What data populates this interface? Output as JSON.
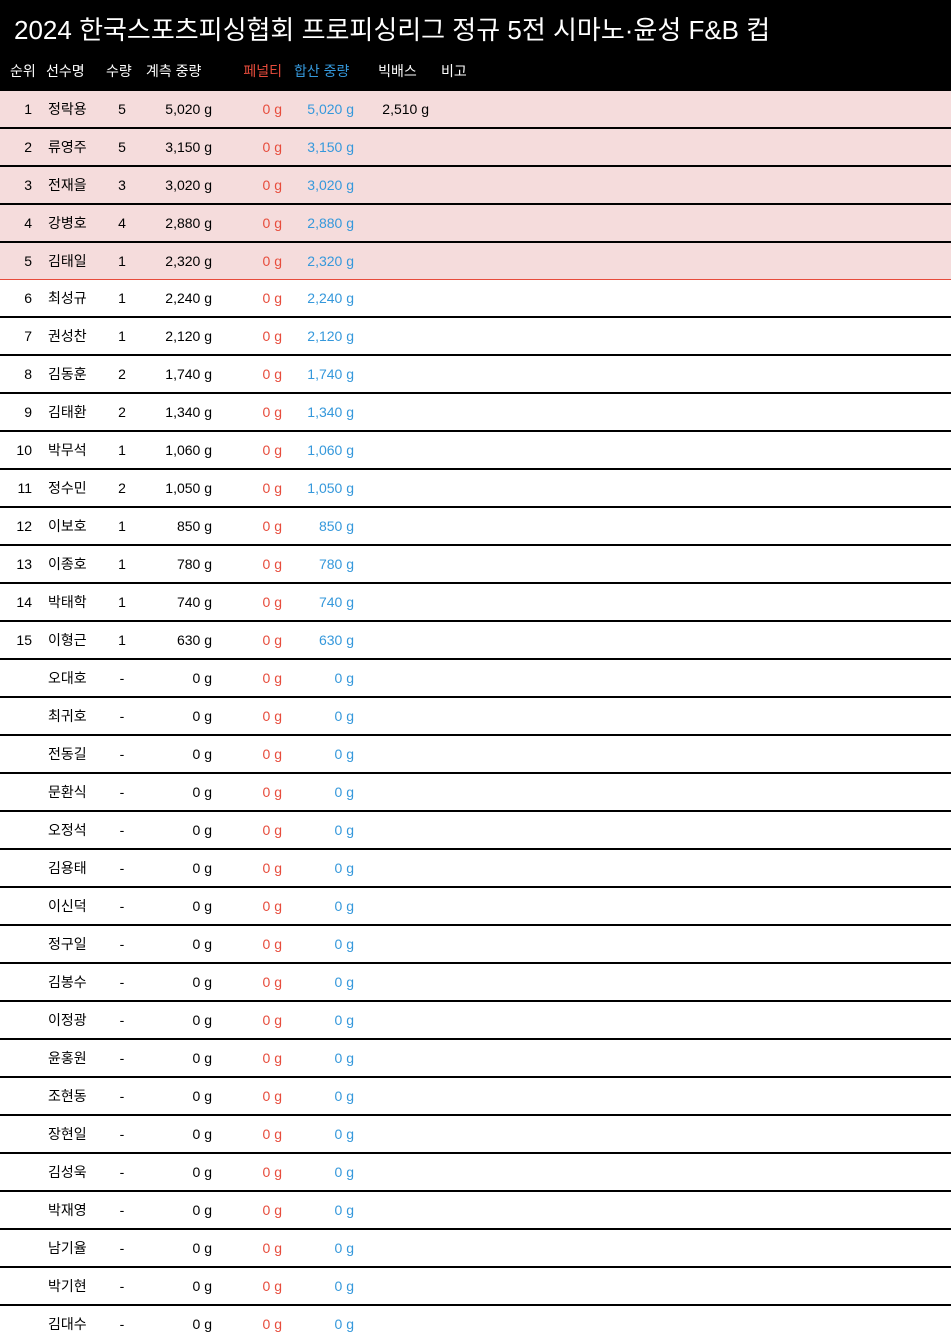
{
  "title": "2024 한국스포츠피싱협회 프로피싱리그 정규 5전 시마노·윤성 F&B 컵",
  "headers": {
    "rank": "순위",
    "name": "선수명",
    "qty": "수량",
    "weight": "계측 중량",
    "penalty": "페널티",
    "sum": "합산 중량",
    "bigbass": "빅배스",
    "note": "비고"
  },
  "colors": {
    "header_bg": "#000000",
    "header_fg": "#ffffff",
    "penalty": "#e74c3c",
    "sum": "#3598db",
    "top5_bg": "#f5dcdc",
    "row_border": "#000000",
    "top5_divider": "#e74c3c"
  },
  "top_highlight_count": 5,
  "rows": [
    {
      "rank": "1",
      "name": "정락용",
      "qty": "5",
      "weight": "5,020 g",
      "penalty": "0 g",
      "sum": "5,020 g",
      "bigbass": "2,510 g",
      "note": ""
    },
    {
      "rank": "2",
      "name": "류영주",
      "qty": "5",
      "weight": "3,150 g",
      "penalty": "0 g",
      "sum": "3,150 g",
      "bigbass": "",
      "note": ""
    },
    {
      "rank": "3",
      "name": "전재을",
      "qty": "3",
      "weight": "3,020 g",
      "penalty": "0 g",
      "sum": "3,020 g",
      "bigbass": "",
      "note": ""
    },
    {
      "rank": "4",
      "name": "강병호",
      "qty": "4",
      "weight": "2,880 g",
      "penalty": "0 g",
      "sum": "2,880 g",
      "bigbass": "",
      "note": ""
    },
    {
      "rank": "5",
      "name": "김태일",
      "qty": "1",
      "weight": "2,320 g",
      "penalty": "0 g",
      "sum": "2,320 g",
      "bigbass": "",
      "note": ""
    },
    {
      "rank": "6",
      "name": "최성규",
      "qty": "1",
      "weight": "2,240 g",
      "penalty": "0 g",
      "sum": "2,240 g",
      "bigbass": "",
      "note": ""
    },
    {
      "rank": "7",
      "name": "권성찬",
      "qty": "1",
      "weight": "2,120 g",
      "penalty": "0 g",
      "sum": "2,120 g",
      "bigbass": "",
      "note": ""
    },
    {
      "rank": "8",
      "name": "김동훈",
      "qty": "2",
      "weight": "1,740 g",
      "penalty": "0 g",
      "sum": "1,740 g",
      "bigbass": "",
      "note": ""
    },
    {
      "rank": "9",
      "name": "김태환",
      "qty": "2",
      "weight": "1,340 g",
      "penalty": "0 g",
      "sum": "1,340 g",
      "bigbass": "",
      "note": ""
    },
    {
      "rank": "10",
      "name": "박무석",
      "qty": "1",
      "weight": "1,060 g",
      "penalty": "0 g",
      "sum": "1,060 g",
      "bigbass": "",
      "note": ""
    },
    {
      "rank": "11",
      "name": "정수민",
      "qty": "2",
      "weight": "1,050 g",
      "penalty": "0 g",
      "sum": "1,050 g",
      "bigbass": "",
      "note": ""
    },
    {
      "rank": "12",
      "name": "이보호",
      "qty": "1",
      "weight": "850 g",
      "penalty": "0 g",
      "sum": "850 g",
      "bigbass": "",
      "note": ""
    },
    {
      "rank": "13",
      "name": "이종호",
      "qty": "1",
      "weight": "780 g",
      "penalty": "0 g",
      "sum": "780 g",
      "bigbass": "",
      "note": ""
    },
    {
      "rank": "14",
      "name": "박태학",
      "qty": "1",
      "weight": "740 g",
      "penalty": "0 g",
      "sum": "740 g",
      "bigbass": "",
      "note": ""
    },
    {
      "rank": "15",
      "name": "이형근",
      "qty": "1",
      "weight": "630 g",
      "penalty": "0 g",
      "sum": "630 g",
      "bigbass": "",
      "note": ""
    },
    {
      "rank": "",
      "name": "오대호",
      "qty": "-",
      "weight": "0 g",
      "penalty": "0 g",
      "sum": "0 g",
      "bigbass": "",
      "note": ""
    },
    {
      "rank": "",
      "name": "최귀호",
      "qty": "-",
      "weight": "0 g",
      "penalty": "0 g",
      "sum": "0 g",
      "bigbass": "",
      "note": ""
    },
    {
      "rank": "",
      "name": "전동길",
      "qty": "-",
      "weight": "0 g",
      "penalty": "0 g",
      "sum": "0 g",
      "bigbass": "",
      "note": ""
    },
    {
      "rank": "",
      "name": "문환식",
      "qty": "-",
      "weight": "0 g",
      "penalty": "0 g",
      "sum": "0 g",
      "bigbass": "",
      "note": ""
    },
    {
      "rank": "",
      "name": "오정석",
      "qty": "-",
      "weight": "0 g",
      "penalty": "0 g",
      "sum": "0 g",
      "bigbass": "",
      "note": ""
    },
    {
      "rank": "",
      "name": "김용태",
      "qty": "-",
      "weight": "0 g",
      "penalty": "0 g",
      "sum": "0 g",
      "bigbass": "",
      "note": ""
    },
    {
      "rank": "",
      "name": "이신덕",
      "qty": "-",
      "weight": "0 g",
      "penalty": "0 g",
      "sum": "0 g",
      "bigbass": "",
      "note": ""
    },
    {
      "rank": "",
      "name": "정구일",
      "qty": "-",
      "weight": "0 g",
      "penalty": "0 g",
      "sum": "0 g",
      "bigbass": "",
      "note": ""
    },
    {
      "rank": "",
      "name": "김봉수",
      "qty": "-",
      "weight": "0 g",
      "penalty": "0 g",
      "sum": "0 g",
      "bigbass": "",
      "note": ""
    },
    {
      "rank": "",
      "name": "이정광",
      "qty": "-",
      "weight": "0 g",
      "penalty": "0 g",
      "sum": "0 g",
      "bigbass": "",
      "note": ""
    },
    {
      "rank": "",
      "name": "윤홍원",
      "qty": "-",
      "weight": "0 g",
      "penalty": "0 g",
      "sum": "0 g",
      "bigbass": "",
      "note": ""
    },
    {
      "rank": "",
      "name": "조현동",
      "qty": "-",
      "weight": "0 g",
      "penalty": "0 g",
      "sum": "0 g",
      "bigbass": "",
      "note": ""
    },
    {
      "rank": "",
      "name": "장현일",
      "qty": "-",
      "weight": "0 g",
      "penalty": "0 g",
      "sum": "0 g",
      "bigbass": "",
      "note": ""
    },
    {
      "rank": "",
      "name": "김성욱",
      "qty": "-",
      "weight": "0 g",
      "penalty": "0 g",
      "sum": "0 g",
      "bigbass": "",
      "note": ""
    },
    {
      "rank": "",
      "name": "박재영",
      "qty": "-",
      "weight": "0 g",
      "penalty": "0 g",
      "sum": "0 g",
      "bigbass": "",
      "note": ""
    },
    {
      "rank": "",
      "name": "남기율",
      "qty": "-",
      "weight": "0 g",
      "penalty": "0 g",
      "sum": "0 g",
      "bigbass": "",
      "note": ""
    },
    {
      "rank": "",
      "name": "박기현",
      "qty": "-",
      "weight": "0 g",
      "penalty": "0 g",
      "sum": "0 g",
      "bigbass": "",
      "note": ""
    },
    {
      "rank": "",
      "name": "김대수",
      "qty": "-",
      "weight": "0 g",
      "penalty": "0 g",
      "sum": "0 g",
      "bigbass": "",
      "note": ""
    }
  ]
}
